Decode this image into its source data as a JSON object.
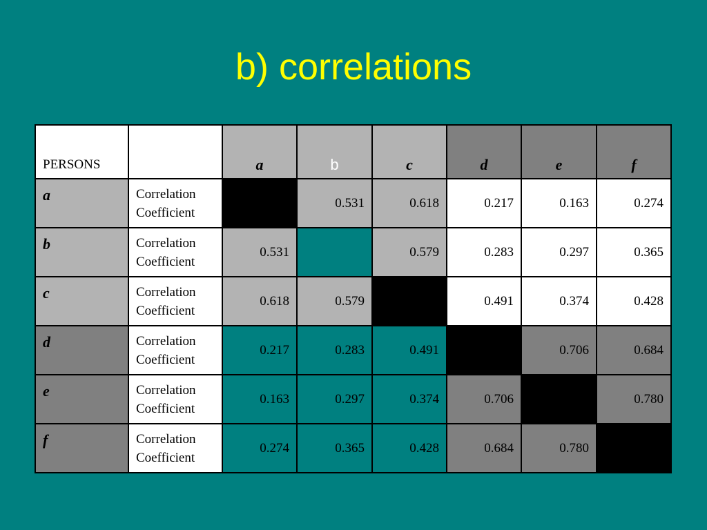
{
  "title": "b) correlations",
  "table": {
    "corner": "PERSONS",
    "columns": [
      "a",
      "b",
      "c",
      "d",
      "e",
      "f"
    ],
    "rows": [
      {
        "label": "a",
        "measure": "Correlation Coefficient",
        "values": [
          null,
          "0.531",
          "0.618",
          "0.217",
          "0.163",
          "0.274"
        ]
      },
      {
        "label": "b",
        "measure": "Correlation Coefficient",
        "values": [
          "0.531",
          null,
          "0.579",
          "0.283",
          "0.297",
          "0.365"
        ]
      },
      {
        "label": "c",
        "measure": "Correlation Coefficient",
        "values": [
          "0.618",
          "0.579",
          null,
          "0.491",
          "0.374",
          "0.428"
        ]
      },
      {
        "label": "d",
        "measure": "Correlation Coefficient",
        "values": [
          "0.217",
          "0.283",
          "0.491",
          null,
          "0.706",
          "0.684"
        ]
      },
      {
        "label": "e",
        "measure": "Correlation Coefficient",
        "values": [
          "0.163",
          "0.297",
          "0.374",
          "0.706",
          null,
          "0.780"
        ]
      },
      {
        "label": "f",
        "measure": "Correlation Coefficient",
        "values": [
          "0.274",
          "0.365",
          "0.428",
          "0.684",
          "0.780",
          null
        ]
      }
    ]
  }
}
